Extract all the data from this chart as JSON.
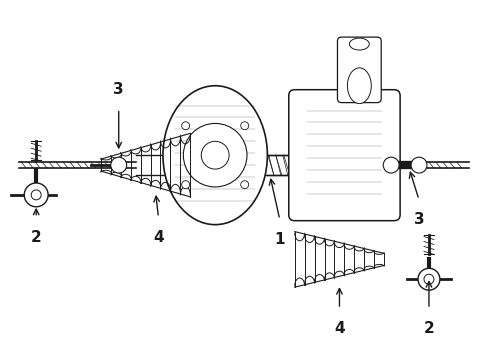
{
  "background_color": "#ffffff",
  "line_color": "#1a1a1a",
  "label_color": "#1a1a1a",
  "figsize": [
    4.9,
    3.6
  ],
  "dpi": 100
}
